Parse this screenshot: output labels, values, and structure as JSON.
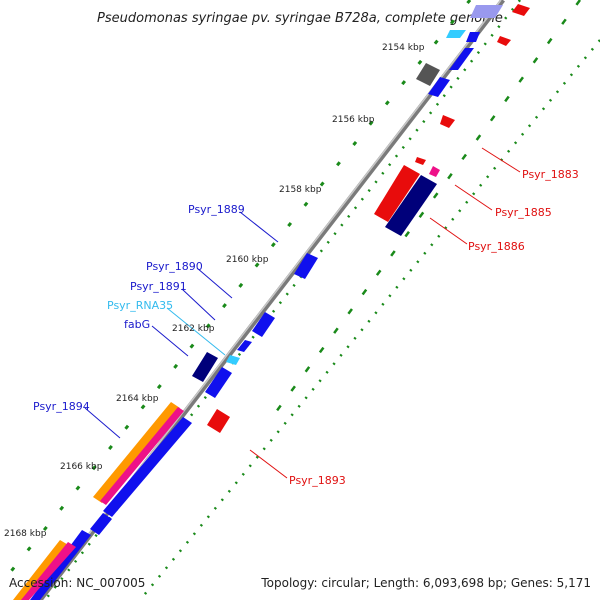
{
  "title": "Pseudomonas syringae pv. syringae B728a, complete genome",
  "footer": {
    "accession": "Accession: NC_007005",
    "summary": "Topology: circular; Length: 6,093,698 bp; Genes: 5,171"
  },
  "ticks": [
    "2154 kbp",
    "2156 kbp",
    "2158 kbp",
    "2160 kbp",
    "2162 kbp",
    "2164 kbp",
    "2166 kbp",
    "2168 kbp"
  ],
  "labels": [
    {
      "text": "Psyr_1883",
      "color": "#e01010"
    },
    {
      "text": "Psyr_1885",
      "color": "#e01010"
    },
    {
      "text": "Psyr_1886",
      "color": "#e01010"
    },
    {
      "text": "Psyr_1889",
      "color": "#1a1acc"
    },
    {
      "text": "Psyr_1890",
      "color": "#1a1acc"
    },
    {
      "text": "Psyr_1891",
      "color": "#1a1acc"
    },
    {
      "text": "Psyr_RNA35",
      "color": "#33bbee"
    },
    {
      "text": "fabG",
      "color": "#1a1acc"
    },
    {
      "text": "Psyr_1894",
      "color": "#1a1acc"
    },
    {
      "text": "Psyr_1893",
      "color": "#e01010"
    }
  ],
  "colors": {
    "backbone": "#7a7a7a",
    "forward_cds": "#1010ee",
    "reverse_cds": "#e80c0c",
    "dark_cds": "#00007a",
    "rna": "#33ccff",
    "gray_feature": "#555555",
    "magenta": "#ee1188",
    "orange": "#ff9900",
    "gc_dots": "#1a8a1a"
  }
}
